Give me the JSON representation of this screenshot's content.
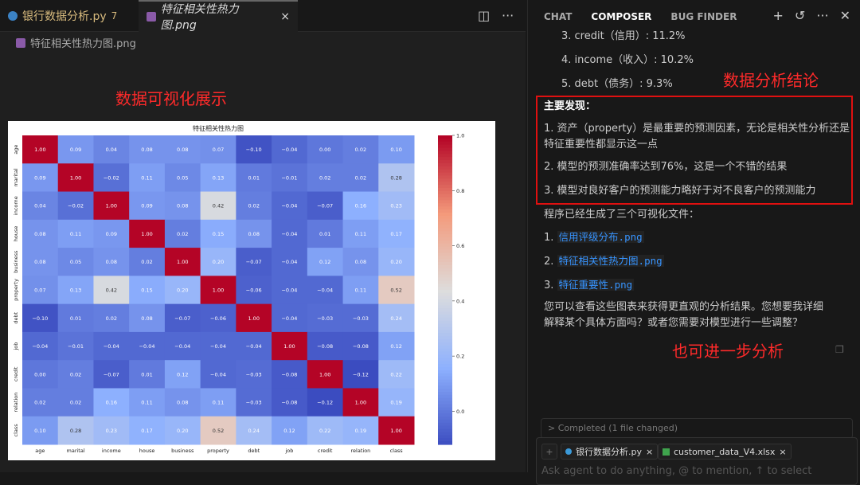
{
  "editor": {
    "tabs": [
      {
        "label": "银行数据分析.py",
        "badge": "7"
      },
      {
        "label": "特征相关性热力图.png",
        "close": "×"
      }
    ],
    "breadcrumb": "特征相关性热力图.png",
    "split_icon": "◫",
    "more_icon": "···"
  },
  "annotations": {
    "left": "数据可视化展示",
    "right_top": "数据分析结论",
    "right_bottom": "也可进一步分析"
  },
  "panel": {
    "tabs": [
      "CHAT",
      "COMPOSER",
      "BUG FINDER"
    ],
    "active_tab": "COMPOSER",
    "icons": [
      "plus-icon",
      "history-icon",
      "more-icon",
      "close-icon"
    ],
    "items": [
      "3. credit（信用）: 11.2%",
      "4. income（收入）: 10.2%",
      "5. debt（债务）: 9.3%"
    ],
    "findings_title": "主要发现：",
    "findings": [
      "1. 资产（property）是最重要的预测因素，无论是相关性分析还是特征重要性都显示这一点",
      "2. 模型的预测准确率达到76%，这是一个不错的结果",
      "3. 模型对良好客户的预测能力略好于对不良客户的预测能力"
    ],
    "files_intro": "程序已经生成了三个可视化文件：",
    "files": [
      {
        "num": "1.",
        "name": "信用评级分布.png"
      },
      {
        "num": "2.",
        "name": "特征相关性热力图.png"
      },
      {
        "num": "3.",
        "name": "特征重要性.png"
      }
    ],
    "closing": [
      "您可以查看这些图表来获得更直观的分析结果。您想要我详细",
      "解释某个具体方面吗？或者您需要对模型进行一些调整？"
    ],
    "completed": "> Completed (1 file changed)",
    "chips": [
      {
        "label": "银行数据分析.py",
        "close": "×"
      },
      {
        "label": "customer_data_V4.xlsx",
        "close": "×"
      }
    ],
    "add": "+",
    "input_placeholder": "Ask agent to do anything, @ to mention, ↑ to select"
  },
  "chart_data": {
    "type": "heatmap",
    "title": "特征相关性热力图",
    "colormap": "coolwarm",
    "labels": [
      "age",
      "marital",
      "income",
      "house",
      "business",
      "property",
      "debt",
      "job",
      "credit",
      "relation",
      "class"
    ],
    "vmin": -0.12,
    "vmax": 1.0,
    "colorbar_ticks": [
      "0.0",
      "0.2",
      "0.4",
      "0.6",
      "0.8",
      "1.0"
    ],
    "values": [
      [
        1.0,
        0.09,
        0.04,
        0.08,
        0.08,
        0.07,
        -0.1,
        -0.04,
        0.0,
        0.02,
        0.1
      ],
      [
        0.09,
        1.0,
        -0.02,
        0.11,
        0.05,
        0.13,
        0.01,
        -0.01,
        0.02,
        0.02,
        0.28
      ],
      [
        0.04,
        -0.02,
        1.0,
        0.09,
        0.08,
        0.42,
        0.02,
        -0.04,
        -0.07,
        0.16,
        0.23
      ],
      [
        0.08,
        0.11,
        0.09,
        1.0,
        0.02,
        0.15,
        0.08,
        -0.04,
        0.01,
        0.11,
        0.17
      ],
      [
        0.08,
        0.05,
        0.08,
        0.02,
        1.0,
        0.2,
        -0.07,
        -0.04,
        0.12,
        0.08,
        0.2
      ],
      [
        0.07,
        0.13,
        0.42,
        0.15,
        0.2,
        1.0,
        -0.06,
        -0.04,
        -0.04,
        0.11,
        0.52
      ],
      [
        -0.1,
        0.01,
        0.02,
        0.08,
        -0.07,
        -0.06,
        1.0,
        -0.04,
        -0.03,
        -0.03,
        0.24
      ],
      [
        -0.04,
        -0.01,
        -0.04,
        -0.04,
        -0.04,
        -0.04,
        -0.04,
        1.0,
        -0.08,
        -0.08,
        0.12
      ],
      [
        0.0,
        0.02,
        -0.07,
        0.01,
        0.12,
        -0.04,
        -0.03,
        -0.08,
        1.0,
        -0.12,
        0.22
      ],
      [
        0.02,
        0.02,
        0.16,
        0.11,
        0.08,
        0.11,
        -0.03,
        -0.08,
        -0.12,
        1.0,
        0.19
      ],
      [
        0.1,
        0.28,
        0.23,
        0.17,
        0.2,
        0.52,
        0.24,
        0.12,
        0.22,
        0.19,
        1.0
      ]
    ]
  }
}
